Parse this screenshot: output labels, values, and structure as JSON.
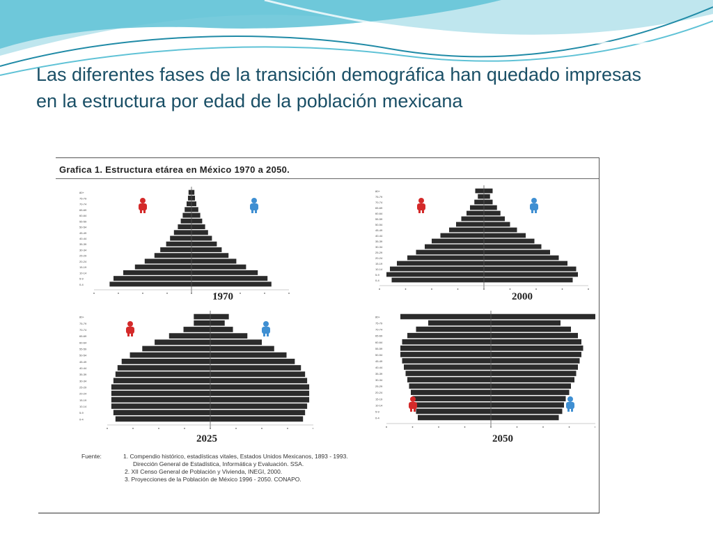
{
  "slide": {
    "title": "Las diferentes fases de la transición demográfica han quedado impresas en la estructura por edad de la población mexicana"
  },
  "colors": {
    "title_text": "#1a4f66",
    "bar": "#2b2b2b",
    "female_icon": "#d42a2a",
    "male_icon": "#3f8fd2",
    "wave_light": "#bfe6ee",
    "wave_mid": "#5fc2d6",
    "wave_dark": "#1f8aa6"
  },
  "figure": {
    "title": "Grafica 1. Estructura etárea en México 1970 a 2050.",
    "source_label": "Fuente:",
    "sources": [
      "1. Compendio histórico, estadísticas vitales, Estados Unidos Mexicanos, 1893 - 1993.",
      "Dirección General de Estadística, Informática y Evaluación. SSA.",
      "2. XII Censo General de Población y Vivienda, INEGI, 2000.",
      "3. Proyecciones de la Población de México 1996 - 2050. CONAPO."
    ],
    "icons": {
      "female": "female-icon",
      "male": "male-icon"
    }
  },
  "chart_data": [
    {
      "type": "bar",
      "title": "1970",
      "categories": [
        "0-4",
        "5-9",
        "10-14",
        "15-19",
        "20-24",
        "25-29",
        "30-34",
        "35-39",
        "40-44",
        "45-49",
        "50-54",
        "55-59",
        "60-64",
        "65-69",
        "70-74",
        "75-79",
        "80+"
      ],
      "series": [
        {
          "values": [
            -4.2,
            -4.0,
            -3.5,
            -2.9,
            -2.4,
            -1.9,
            -1.6,
            -1.3,
            -1.1,
            -0.9,
            -0.7,
            -0.55,
            -0.45,
            -0.35,
            -0.25,
            -0.18,
            -0.15
          ]
        },
        {
          "values": [
            4.1,
            3.9,
            3.4,
            2.8,
            2.3,
            1.9,
            1.55,
            1.3,
            1.05,
            0.85,
            0.7,
            0.55,
            0.45,
            0.35,
            0.25,
            0.18,
            0.15
          ]
        }
      ],
      "xlim": [
        -5,
        5
      ]
    },
    {
      "type": "bar",
      "title": "2000",
      "categories": [
        "0-4",
        "5-9",
        "10-14",
        "15-19",
        "20-24",
        "25-29",
        "30-34",
        "35-39",
        "40-44",
        "45-49",
        "50-54",
        "55-59",
        "60-64",
        "65-69",
        "70-74",
        "75-79",
        "80+"
      ],
      "series": [
        {
          "values": [
            -5.3,
            -5.6,
            -5.4,
            -5.0,
            -4.4,
            -3.9,
            -3.4,
            -3.0,
            -2.5,
            -2.0,
            -1.6,
            -1.3,
            -1.0,
            -0.8,
            -0.55,
            -0.35,
            -0.5
          ]
        },
        {
          "values": [
            5.1,
            5.4,
            5.3,
            4.8,
            4.3,
            3.8,
            3.3,
            2.9,
            2.4,
            1.9,
            1.5,
            1.2,
            0.95,
            0.75,
            0.5,
            0.35,
            0.5
          ]
        }
      ],
      "xlim": [
        -6,
        6
      ]
    },
    {
      "type": "bar",
      "title": "2025",
      "categories": [
        "0-4",
        "5-9",
        "10-14",
        "15-19",
        "20-24",
        "25-29",
        "30-34",
        "35-39",
        "40-44",
        "45-49",
        "50-54",
        "55-59",
        "60-64",
        "65-69",
        "70-74",
        "75-79",
        "80+"
      ],
      "series": [
        {
          "values": [
            -4.6,
            -4.7,
            -4.8,
            -4.8,
            -4.8,
            -4.8,
            -4.7,
            -4.6,
            -4.5,
            -4.3,
            -3.9,
            -3.3,
            -2.7,
            -2.0,
            -1.3,
            -0.8,
            -0.8
          ]
        },
        {
          "values": [
            4.5,
            4.6,
            4.7,
            4.8,
            4.8,
            4.8,
            4.7,
            4.6,
            4.4,
            4.1,
            3.7,
            3.1,
            2.5,
            1.8,
            1.1,
            0.7,
            0.9
          ]
        }
      ],
      "xlim": [
        -5,
        5
      ]
    },
    {
      "type": "bar",
      "title": "2050",
      "categories": [
        "0-4",
        "5-9",
        "10-14",
        "15-19",
        "20-24",
        "25-29",
        "30-34",
        "35-39",
        "40-44",
        "45-49",
        "50-54",
        "55-59",
        "60-64",
        "65-69",
        "70-74",
        "75-79",
        "80+"
      ],
      "series": [
        {
          "values": [
            -4.2,
            -4.3,
            -4.4,
            -4.5,
            -4.6,
            -4.7,
            -4.8,
            -4.9,
            -5.0,
            -5.1,
            -5.2,
            -5.2,
            -5.1,
            -4.8,
            -4.3,
            -3.6,
            -5.2
          ]
        },
        {
          "values": [
            3.9,
            4.1,
            4.2,
            4.3,
            4.5,
            4.6,
            4.8,
            4.9,
            5.0,
            5.1,
            5.2,
            5.3,
            5.2,
            5.0,
            4.6,
            4.0,
            6.2
          ]
        }
      ],
      "xlim": [
        -6,
        6
      ]
    }
  ]
}
